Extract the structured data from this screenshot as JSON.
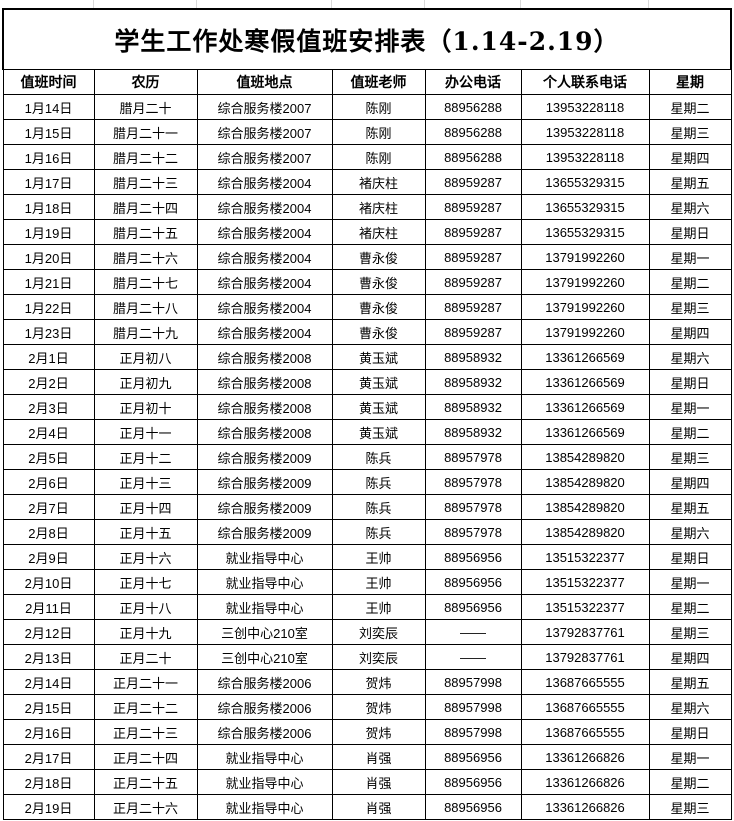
{
  "title": "学生工作处寒假值班安排表（1.14-2.19）",
  "headers": [
    "值班时间",
    "农历",
    "值班地点",
    "值班老师",
    "办公电话",
    "个人联系电话",
    "星期"
  ],
  "rows": [
    [
      "1月14日",
      "腊月二十",
      "综合服务楼2007",
      "陈刚",
      "88956288",
      "13953228118",
      "星期二"
    ],
    [
      "1月15日",
      "腊月二十一",
      "综合服务楼2007",
      "陈刚",
      "88956288",
      "13953228118",
      "星期三"
    ],
    [
      "1月16日",
      "腊月二十二",
      "综合服务楼2007",
      "陈刚",
      "88956288",
      "13953228118",
      "星期四"
    ],
    [
      "1月17日",
      "腊月二十三",
      "综合服务楼2004",
      "褚庆柱",
      "88959287",
      "13655329315",
      "星期五"
    ],
    [
      "1月18日",
      "腊月二十四",
      "综合服务楼2004",
      "褚庆柱",
      "88959287",
      "13655329315",
      "星期六"
    ],
    [
      "1月19日",
      "腊月二十五",
      "综合服务楼2004",
      "褚庆柱",
      "88959287",
      "13655329315",
      "星期日"
    ],
    [
      "1月20日",
      "腊月二十六",
      "综合服务楼2004",
      "曹永俊",
      "88959287",
      "13791992260",
      "星期一"
    ],
    [
      "1月21日",
      "腊月二十七",
      "综合服务楼2004",
      "曹永俊",
      "88959287",
      "13791992260",
      "星期二"
    ],
    [
      "1月22日",
      "腊月二十八",
      "综合服务楼2004",
      "曹永俊",
      "88959287",
      "13791992260",
      "星期三"
    ],
    [
      "1月23日",
      "腊月二十九",
      "综合服务楼2004",
      "曹永俊",
      "88959287",
      "13791992260",
      "星期四"
    ],
    [
      "2月1日",
      "正月初八",
      "综合服务楼2008",
      "黄玉斌",
      "88958932",
      "13361266569",
      "星期六"
    ],
    [
      "2月2日",
      "正月初九",
      "综合服务楼2008",
      "黄玉斌",
      "88958932",
      "13361266569",
      "星期日"
    ],
    [
      "2月3日",
      "正月初十",
      "综合服务楼2008",
      "黄玉斌",
      "88958932",
      "13361266569",
      "星期一"
    ],
    [
      "2月4日",
      "正月十一",
      "综合服务楼2008",
      "黄玉斌",
      "88958932",
      "13361266569",
      "星期二"
    ],
    [
      "2月5日",
      "正月十二",
      "综合服务楼2009",
      "陈兵",
      "88957978",
      "13854289820",
      "星期三"
    ],
    [
      "2月6日",
      "正月十三",
      "综合服务楼2009",
      "陈兵",
      "88957978",
      "13854289820",
      "星期四"
    ],
    [
      "2月7日",
      "正月十四",
      "综合服务楼2009",
      "陈兵",
      "88957978",
      "13854289820",
      "星期五"
    ],
    [
      "2月8日",
      "正月十五",
      "综合服务楼2009",
      "陈兵",
      "88957978",
      "13854289820",
      "星期六"
    ],
    [
      "2月9日",
      "正月十六",
      "就业指导中心",
      "王帅",
      "88956956",
      "13515322377",
      "星期日"
    ],
    [
      "2月10日",
      "正月十七",
      "就业指导中心",
      "王帅",
      "88956956",
      "13515322377",
      "星期一"
    ],
    [
      "2月11日",
      "正月十八",
      "就业指导中心",
      "王帅",
      "88956956",
      "13515322377",
      "星期二"
    ],
    [
      "2月12日",
      "正月十九",
      "三创中心210室",
      "刘奕辰",
      "——",
      "13792837761",
      "星期三"
    ],
    [
      "2月13日",
      "正月二十",
      "三创中心210室",
      "刘奕辰",
      "——",
      "13792837761",
      "星期四"
    ],
    [
      "2月14日",
      "正月二十一",
      "综合服务楼2006",
      "贺炜",
      "88957998",
      "13687665555",
      "星期五"
    ],
    [
      "2月15日",
      "正月二十二",
      "综合服务楼2006",
      "贺炜",
      "88957998",
      "13687665555",
      "星期六"
    ],
    [
      "2月16日",
      "正月二十三",
      "综合服务楼2006",
      "贺炜",
      "88957998",
      "13687665555",
      "星期日"
    ],
    [
      "2月17日",
      "正月二十四",
      "就业指导中心",
      "肖强",
      "88956956",
      "13361266826",
      "星期一"
    ],
    [
      "2月18日",
      "正月二十五",
      "就业指导中心",
      "肖强",
      "88956956",
      "13361266826",
      "星期二"
    ],
    [
      "2月19日",
      "正月二十六",
      "就业指导中心",
      "肖强",
      "88956956",
      "13361266826",
      "星期三"
    ]
  ]
}
